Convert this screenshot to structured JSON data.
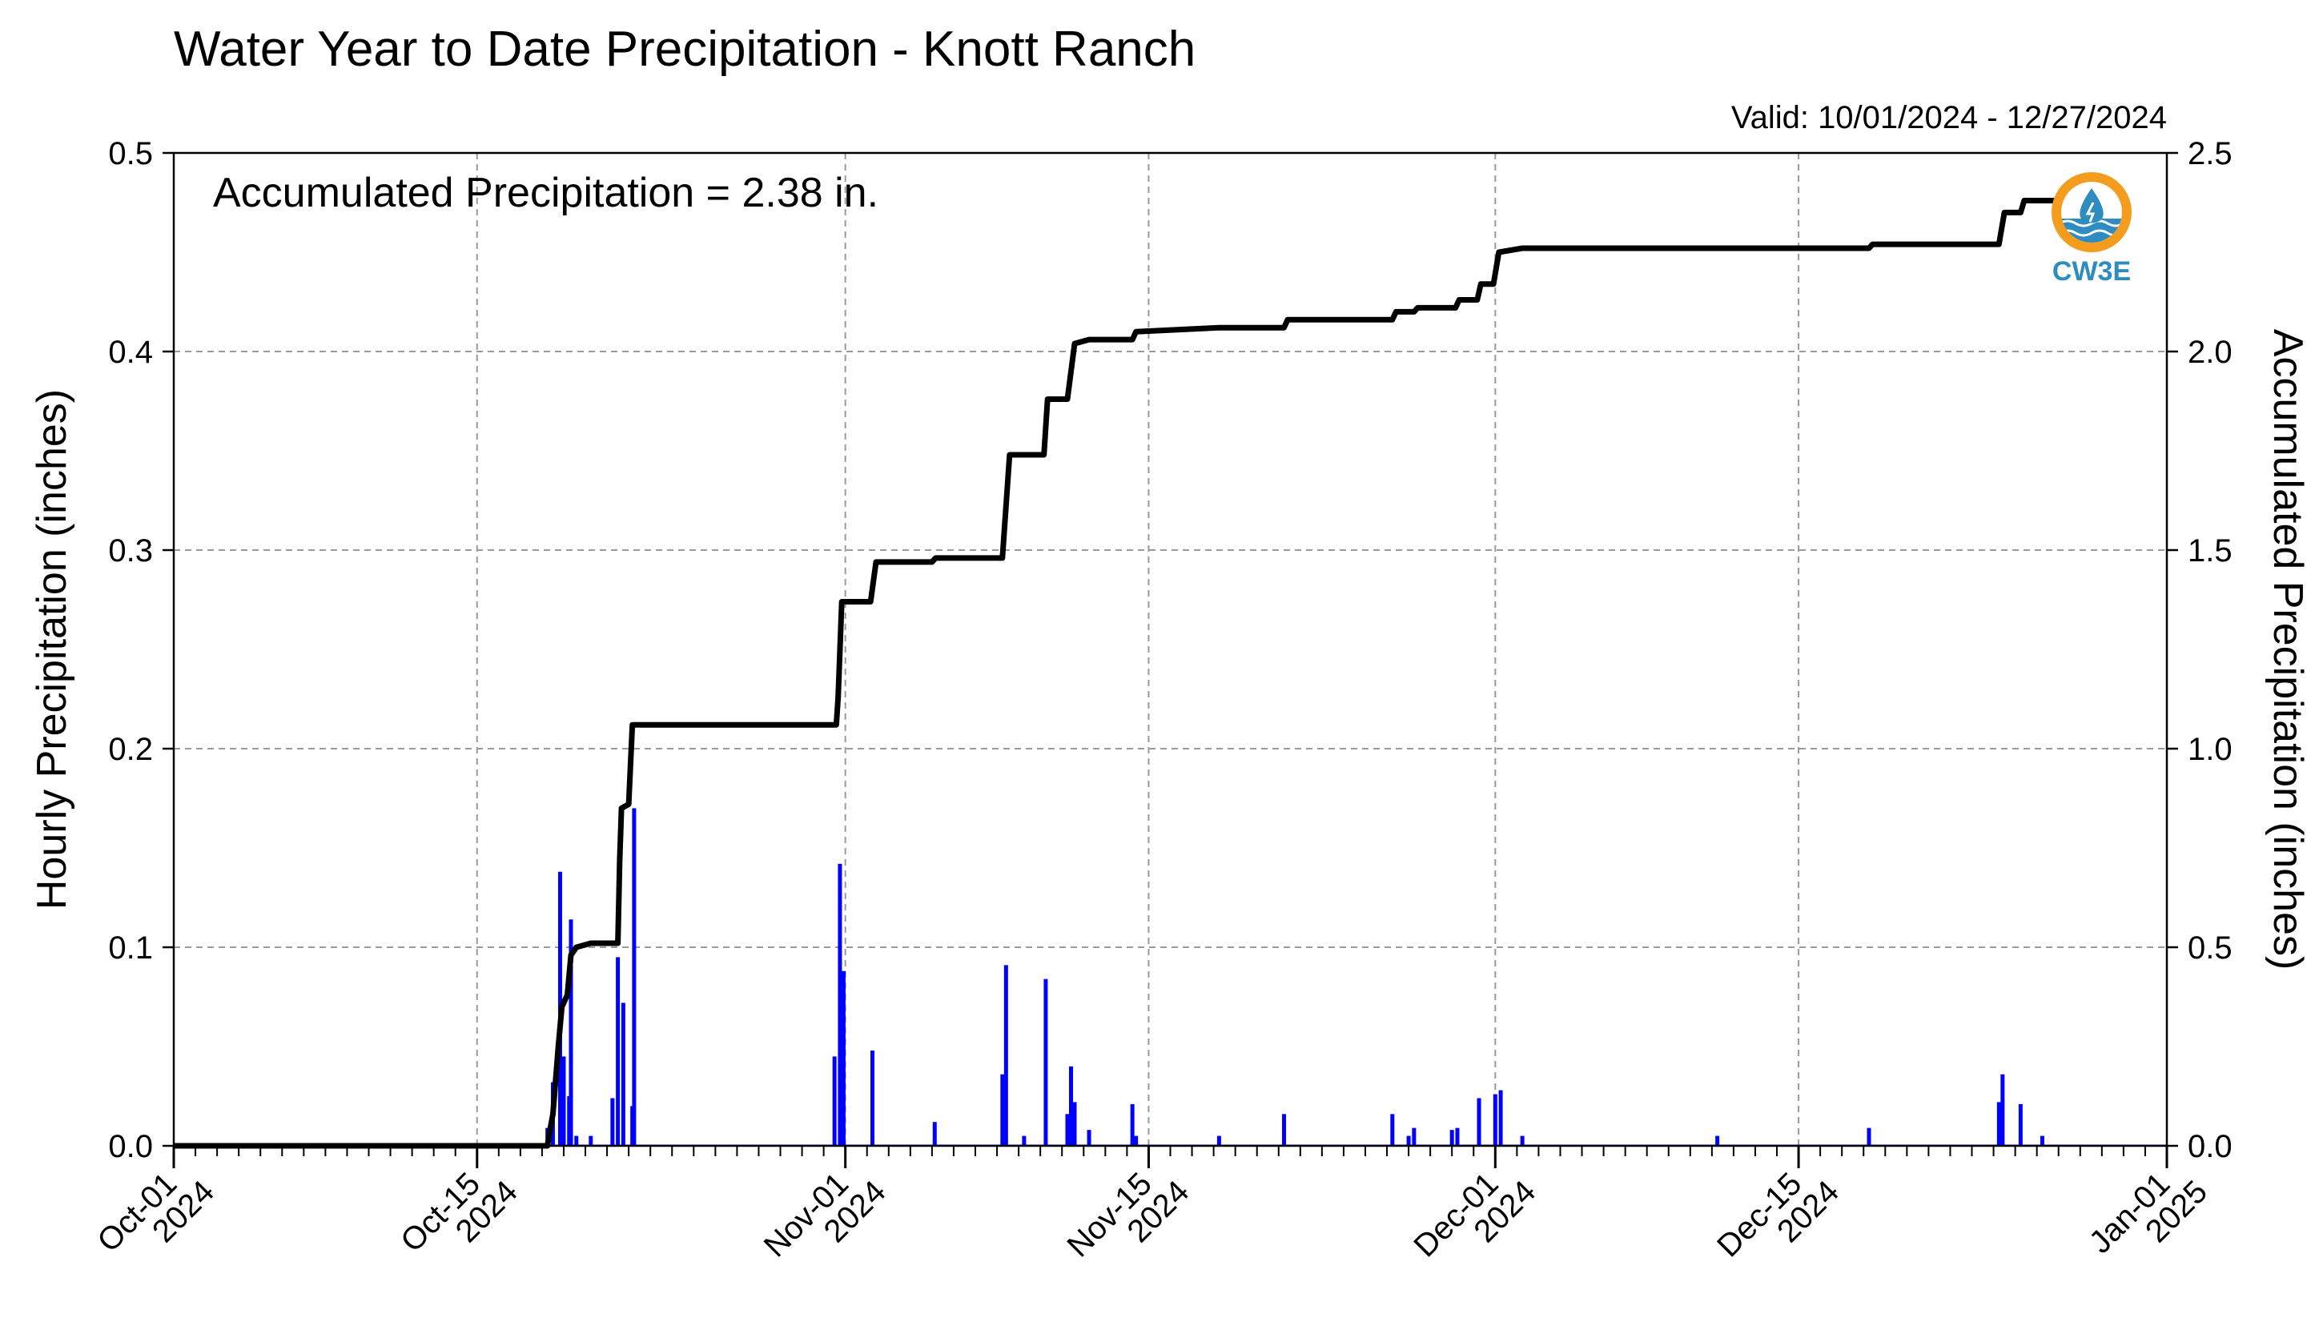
{
  "chart_data": {
    "type": "bar+line",
    "title": "Water Year to Date Precipitation - Knott Ranch",
    "subtitle": "Valid: 10/01/2024 - 12/27/2024",
    "annotation": "Accumulated Precipitation = 2.38 in.",
    "ylabel_left": "Hourly Precipitation (inches)",
    "ylabel_right": "Accumulated Precipitation (inches)",
    "ylim_left": [
      0,
      0.5
    ],
    "ylim_right": [
      0,
      2.5
    ],
    "xlim": [
      "2024-10-01",
      "2025-01-01"
    ],
    "grid": true,
    "left_axis_color": "#0000ff",
    "bar_color": "#0000ff",
    "line_color": "#000000",
    "left_ticks": [
      "0.0",
      "0.1",
      "0.2",
      "0.3",
      "0.4",
      "0.5"
    ],
    "right_ticks": [
      "0.0",
      "0.5",
      "1.0",
      "1.5",
      "2.0",
      "2.5"
    ],
    "x_ticks": [
      {
        "date": "2024-10-01",
        "line1": "Oct-01",
        "line2": "2024"
      },
      {
        "date": "2024-10-15",
        "line1": "Oct-15",
        "line2": "2024"
      },
      {
        "date": "2024-11-01",
        "line1": "Nov-01",
        "line2": "2024"
      },
      {
        "date": "2024-11-15",
        "line1": "Nov-15",
        "line2": "2024"
      },
      {
        "date": "2024-12-01",
        "line1": "Dec-01",
        "line2": "2024"
      },
      {
        "date": "2024-12-15",
        "line1": "Dec-15",
        "line2": "2024"
      },
      {
        "date": "2025-01-01",
        "line1": "Jan-01",
        "line2": "2025"
      }
    ],
    "series": [
      {
        "name": "Hourly Precipitation",
        "kind": "bar",
        "points": [
          [
            "2024-10-18 06:00",
            0.009
          ],
          [
            "2024-10-18 12:00",
            0.032
          ],
          [
            "2024-10-18 20:00",
            0.138
          ],
          [
            "2024-10-19 00:00",
            0.045
          ],
          [
            "2024-10-19 06:00",
            0.025
          ],
          [
            "2024-10-19 08:00",
            0.114
          ],
          [
            "2024-10-19 14:00",
            0.005
          ],
          [
            "2024-10-20 06:00",
            0.005
          ],
          [
            "2024-10-21 06:00",
            0.024
          ],
          [
            "2024-10-21 12:00",
            0.095
          ],
          [
            "2024-10-21 18:00",
            0.072
          ],
          [
            "2024-10-22 04:00",
            0.02
          ],
          [
            "2024-10-22 06:00",
            0.17
          ],
          [
            "2024-10-31 12:00",
            0.045
          ],
          [
            "2024-10-31 18:00",
            0.142
          ],
          [
            "2024-10-31 22:00",
            0.088
          ],
          [
            "2024-11-02 06:00",
            0.048
          ],
          [
            "2024-11-05 03:00",
            0.012
          ],
          [
            "2024-11-08 06:00",
            0.036
          ],
          [
            "2024-11-08 10:00",
            0.091
          ],
          [
            "2024-11-09 06:00",
            0.005
          ],
          [
            "2024-11-10 06:00",
            0.084
          ],
          [
            "2024-11-11 06:00",
            0.016
          ],
          [
            "2024-11-11 10:00",
            0.04
          ],
          [
            "2024-11-11 14:00",
            0.022
          ],
          [
            "2024-11-12 06:00",
            0.008
          ],
          [
            "2024-11-14 06:00",
            0.021
          ],
          [
            "2024-11-14 10:00",
            0.005
          ],
          [
            "2024-11-18 06:00",
            0.005
          ],
          [
            "2024-11-21 06:00",
            0.016
          ],
          [
            "2024-11-26 06:00",
            0.016
          ],
          [
            "2024-11-27 00:00",
            0.005
          ],
          [
            "2024-11-27 06:00",
            0.009
          ],
          [
            "2024-11-29 00:00",
            0.008
          ],
          [
            "2024-11-29 06:00",
            0.009
          ],
          [
            "2024-11-30 06:00",
            0.024
          ],
          [
            "2024-12-01 00:00",
            0.026
          ],
          [
            "2024-12-01 06:00",
            0.028
          ],
          [
            "2024-12-02 06:00",
            0.005
          ],
          [
            "2024-12-11 06:00",
            0.005
          ],
          [
            "2024-12-18 06:00",
            0.009
          ],
          [
            "2024-12-24 06:00",
            0.022
          ],
          [
            "2024-12-24 10:00",
            0.036
          ],
          [
            "2024-12-25 06:00",
            0.021
          ],
          [
            "2024-12-26 06:00",
            0.005
          ]
        ]
      },
      {
        "name": "Accumulated Precipitation",
        "kind": "step-line",
        "points": [
          [
            "2024-10-01 00:00",
            0.0
          ],
          [
            "2024-10-18 06:00",
            0.0
          ],
          [
            "2024-10-18 08:00",
            0.03
          ],
          [
            "2024-10-18 12:00",
            0.08
          ],
          [
            "2024-10-18 18:00",
            0.25
          ],
          [
            "2024-10-18 22:00",
            0.35
          ],
          [
            "2024-10-19 04:00",
            0.38
          ],
          [
            "2024-10-19 08:00",
            0.48
          ],
          [
            "2024-10-19 14:00",
            0.5
          ],
          [
            "2024-10-20 06:00",
            0.51
          ],
          [
            "2024-10-21 12:00",
            0.51
          ],
          [
            "2024-10-21 14:00",
            0.72
          ],
          [
            "2024-10-21 16:00",
            0.85
          ],
          [
            "2024-10-22 00:00",
            0.86
          ],
          [
            "2024-10-22 04:00",
            1.06
          ],
          [
            "2024-10-31 14:00",
            1.06
          ],
          [
            "2024-10-31 16:00",
            1.13
          ],
          [
            "2024-10-31 20:00",
            1.37
          ],
          [
            "2024-11-02 04:00",
            1.37
          ],
          [
            "2024-11-02 10:00",
            1.47
          ],
          [
            "2024-11-05 00:00",
            1.47
          ],
          [
            "2024-11-05 04:00",
            1.48
          ],
          [
            "2024-11-08 06:00",
            1.48
          ],
          [
            "2024-11-08 14:00",
            1.74
          ],
          [
            "2024-11-10 04:00",
            1.74
          ],
          [
            "2024-11-10 08:00",
            1.88
          ],
          [
            "2024-11-11 06:00",
            1.88
          ],
          [
            "2024-11-11 14:00",
            2.02
          ],
          [
            "2024-11-12 06:00",
            2.03
          ],
          [
            "2024-11-14 06:00",
            2.03
          ],
          [
            "2024-11-14 10:00",
            2.05
          ],
          [
            "2024-11-18 06:00",
            2.06
          ],
          [
            "2024-11-21 06:00",
            2.06
          ],
          [
            "2024-11-21 10:00",
            2.08
          ],
          [
            "2024-11-26 06:00",
            2.08
          ],
          [
            "2024-11-26 10:00",
            2.1
          ],
          [
            "2024-11-27 06:00",
            2.1
          ],
          [
            "2024-11-27 10:00",
            2.11
          ],
          [
            "2024-11-29 04:00",
            2.11
          ],
          [
            "2024-11-29 08:00",
            2.13
          ],
          [
            "2024-11-30 04:00",
            2.13
          ],
          [
            "2024-11-30 08:00",
            2.17
          ],
          [
            "2024-11-30 22:00",
            2.17
          ],
          [
            "2024-12-01 04:00",
            2.25
          ],
          [
            "2024-12-02 06:00",
            2.26
          ],
          [
            "2024-12-11 06:00",
            2.26
          ],
          [
            "2024-12-11 10:00",
            2.26
          ],
          [
            "2024-12-18 06:00",
            2.26
          ],
          [
            "2024-12-18 10:00",
            2.27
          ],
          [
            "2024-12-24 06:00",
            2.27
          ],
          [
            "2024-12-24 12:00",
            2.35
          ],
          [
            "2024-12-25 06:00",
            2.35
          ],
          [
            "2024-12-25 10:00",
            2.38
          ],
          [
            "2024-12-27 00:00",
            2.38
          ]
        ]
      }
    ]
  },
  "logo": {
    "text": "CW3E",
    "icon": "cw3e-water-drop-logo",
    "colors": {
      "ring": "#f39c1e",
      "water": "#2e8cc0",
      "text": "#2e8cc0"
    }
  }
}
